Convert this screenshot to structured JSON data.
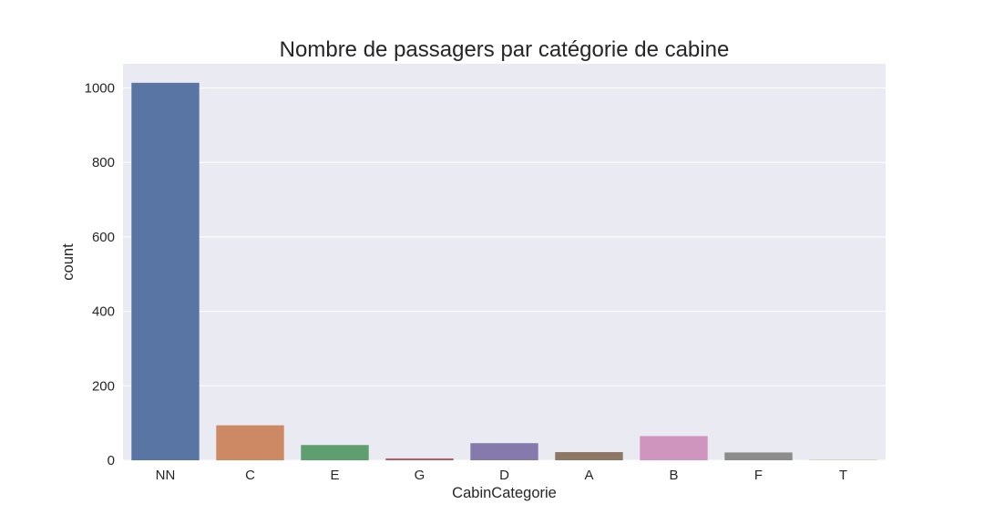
{
  "chart_data": {
    "type": "bar",
    "title": "Nombre de passagers par catégorie de cabine",
    "xlabel": "CabinCategorie",
    "ylabel": "count",
    "categories": [
      "NN",
      "C",
      "E",
      "G",
      "D",
      "A",
      "B",
      "F",
      "T"
    ],
    "values": [
      1014,
      94,
      41,
      5,
      46,
      22,
      65,
      21,
      1
    ],
    "colors": [
      "#5875a4",
      "#cc8963",
      "#5f9e6e",
      "#b55d60",
      "#857aab",
      "#8d7866",
      "#d095bf",
      "#8c8c8c",
      "#c1b37f"
    ],
    "yticks": [
      0,
      200,
      400,
      600,
      800,
      1000
    ],
    "ylim": [
      0,
      1065
    ],
    "grid": true,
    "background": "#eaeaf2",
    "gridcolor": "#ffffff"
  }
}
